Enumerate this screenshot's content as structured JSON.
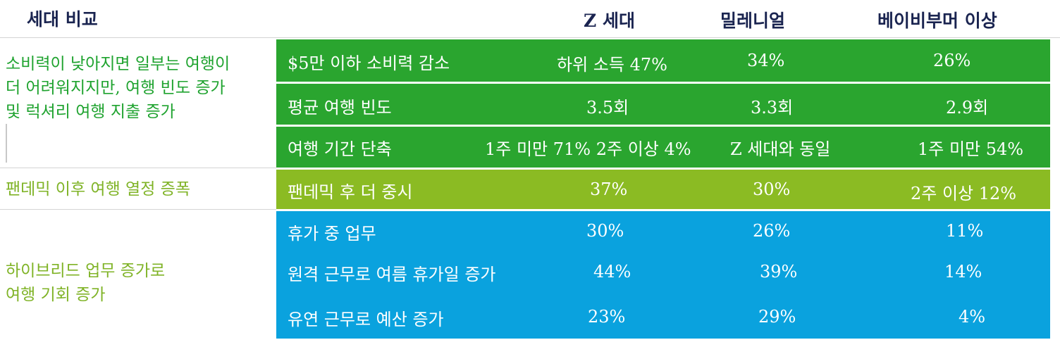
{
  "header": {
    "title": "세대 비교",
    "columns": [
      "Z 세대",
      "밀레니얼",
      "베이비부머 이상"
    ]
  },
  "colors": {
    "dark_green": "#2aa52f",
    "light_green": "#8bbb23",
    "blue": "#0aa2de",
    "green_text": "#1fa32f",
    "olive_text": "#7fb326",
    "navy_text": "#1a2450"
  },
  "groups": [
    {
      "label": "소비력이 낮아지면 일부는 여행이 더 어려워지지만, 여행 빈도 증가 및 럭셔리 여행 지출 증가",
      "label_lines": [
        "소비력이 낮아지면 일부는 여행이",
        "더 어려워지지만, 여행 빈도 증가",
        "및 럭셔리 여행 지출 증가"
      ],
      "rows": [
        {
          "metric": "$5만 이하 소비력 감소",
          "gen_z": "하위 소득 47%",
          "millennial": "34%",
          "boomer": "26%"
        },
        {
          "metric": "평균 여행 빈도",
          "gen_z": "3.5회",
          "millennial": "3.3회",
          "boomer": "2.9회"
        },
        {
          "metric": "여행 기간 단축",
          "gen_z": "1주 미만 71% 2주 이상 4%",
          "millennial": "Z 세대와 동일",
          "boomer": "1주 미만 54%"
        }
      ]
    },
    {
      "label": "팬데믹 이후 여행 열정 증폭",
      "label_lines": [
        "팬데믹 이후 여행 열정 증폭"
      ],
      "rows": [
        {
          "metric": "팬데믹 후 더 중시",
          "gen_z": "37%",
          "millennial": "30%",
          "boomer": "2주 이상 12%"
        }
      ]
    },
    {
      "label": "하이브리드 업무 증가로 여행 기회 증가",
      "label_lines": [
        "하이브리드 업무 증가로",
        "여행 기회 증가"
      ],
      "rows": [
        {
          "metric": "휴가 중 업무",
          "gen_z": "30%",
          "millennial": "26%",
          "boomer": "11%"
        },
        {
          "metric": "원격 근무로 여름 휴가일 증가",
          "gen_z": "44%",
          "millennial": "39%",
          "boomer": "14%"
        },
        {
          "metric": "유연 근무로 예산 증가",
          "gen_z": "23%",
          "millennial": "29%",
          "boomer": "4%"
        }
      ]
    }
  ]
}
